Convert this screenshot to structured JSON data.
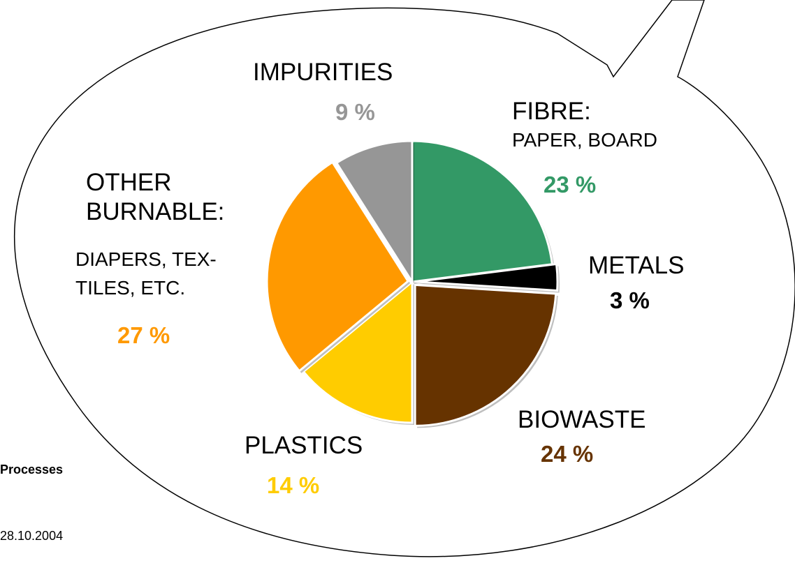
{
  "chart_data": {
    "type": "pie",
    "start_angle_deg": 90,
    "direction": "clockwise",
    "slices": [
      {
        "key": "fibre",
        "value": 23,
        "color": "#339966"
      },
      {
        "key": "metals",
        "value": 3,
        "color": "#000000"
      },
      {
        "key": "biowaste",
        "value": 24,
        "color": "#663300"
      },
      {
        "key": "plastics",
        "value": 14,
        "color": "#ffcc00"
      },
      {
        "key": "other",
        "value": 27,
        "color": "#ff9900"
      },
      {
        "key": "impurities",
        "value": 9,
        "color": "#969696"
      }
    ],
    "exploded_keys": [
      "metals",
      "biowaste",
      "other"
    ]
  },
  "labels": {
    "impurities": {
      "name": "IMPURITIES",
      "pct": "9 %",
      "color": "#969696"
    },
    "fibre": {
      "name": "FIBRE:",
      "sub": "PAPER, BOARD",
      "pct": "23 %",
      "color": "#339966"
    },
    "other": {
      "name1": "OTHER",
      "name2": "BURNABLE:",
      "sub1": "DIAPERS, TEX-",
      "sub2": "TILES, ETC.",
      "pct": "27 %",
      "color": "#ff9900"
    },
    "metals": {
      "name": "METALS",
      "pct": "3 %",
      "color": "#000000"
    },
    "biowaste": {
      "name": "BIOWASTE",
      "pct": "24 %",
      "color": "#663300"
    },
    "plastics": {
      "name": "PLASTICS",
      "pct": "14 %",
      "color": "#ffcc00"
    }
  },
  "footer": {
    "title": "Processes",
    "date": "28.10.2004"
  }
}
